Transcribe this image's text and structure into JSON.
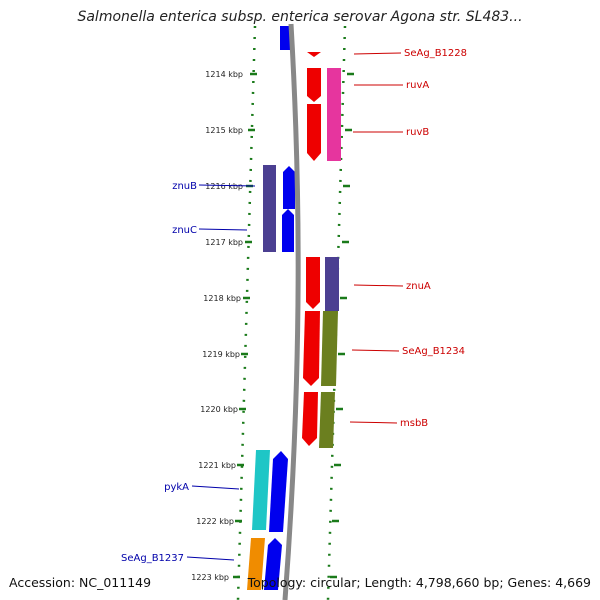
{
  "title": "Salmonella enterica subsp. enterica serovar Agona str. SL483...",
  "accession_text": "Accession: NC_011149",
  "topology_text": "Topology: circular; Length: 4,798,660 bp; Genes: 4,669",
  "scale_ticks": [
    "1214 kbp",
    "1215 kbp",
    "1216 kbp",
    "1217 kbp",
    "1218 kbp",
    "1219 kbp",
    "1220 kbp",
    "1221 kbp",
    "1222 kbp",
    "1223 kbp"
  ],
  "forward_genes": [
    {
      "label": "SeAg_B1228"
    },
    {
      "label": "ruvA"
    },
    {
      "label": "ruvB"
    },
    {
      "label": "znuA"
    },
    {
      "label": "SeAg_B1234"
    },
    {
      "label": "msbB"
    }
  ],
  "reverse_genes": [
    {
      "label": "znuB"
    },
    {
      "label": "znuC"
    },
    {
      "label": "pykA"
    },
    {
      "label": "SeAg_B1237"
    }
  ],
  "colors": {
    "forward_label": "#cc0000",
    "reverse_label": "#0000aa",
    "forward_strand": "#ee0000",
    "reverse_strand": "#0000ee",
    "backbone": "#888888",
    "ticks": "#1a7a1a",
    "cog_pink": "#e6359e",
    "cog_slate": "#4b3f91",
    "cog_olive": "#6b7f1f",
    "cog_cyan": "#1ec6c6",
    "cog_orange": "#f08c00"
  }
}
